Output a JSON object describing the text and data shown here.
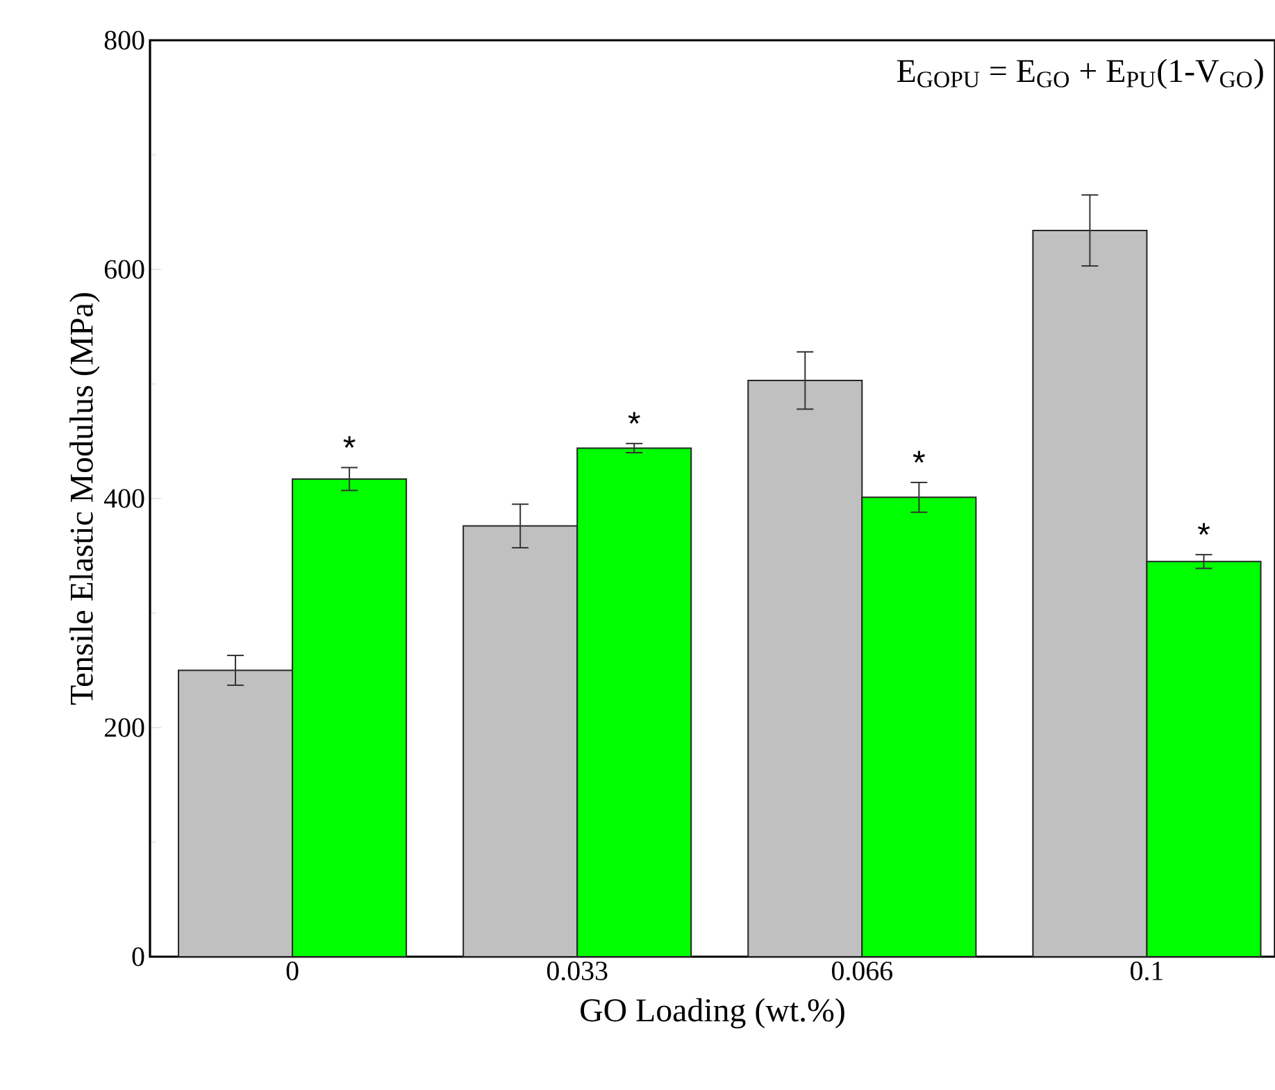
{
  "chart_data": {
    "type": "bar",
    "xlabel": "GO Loading (wt.%)",
    "ylabel": "Tensile Elastic Modulus (MPa)",
    "categories": [
      "0",
      "0.033",
      "0.066",
      "0.1"
    ],
    "series": [
      {
        "color": "#c0c0c0",
        "values": [
          250,
          376,
          503,
          634
        ],
        "errors": [
          13,
          19,
          25,
          31
        ]
      },
      {
        "color": "#00ff00",
        "values": [
          417,
          444,
          401,
          345
        ],
        "errors": [
          10,
          4,
          13,
          6
        ]
      }
    ],
    "ylim": [
      0,
      800
    ],
    "yticks": [
      0,
      200,
      400,
      600,
      800
    ],
    "grid": false,
    "annotations": [
      "E$_{GOPU}$ = E$_{GO}$ + E$_{PU}$(1-V$_{GO}$)",
      {
        "text": "*",
        "x": "0",
        "y": 417
      },
      {
        "text": "*",
        "x": "0.033",
        "y": 444
      },
      {
        "text": "*",
        "x": "0.066",
        "y": 401
      },
      {
        "text": "*",
        "x": "0.1",
        "y": 345
      }
    ]
  }
}
